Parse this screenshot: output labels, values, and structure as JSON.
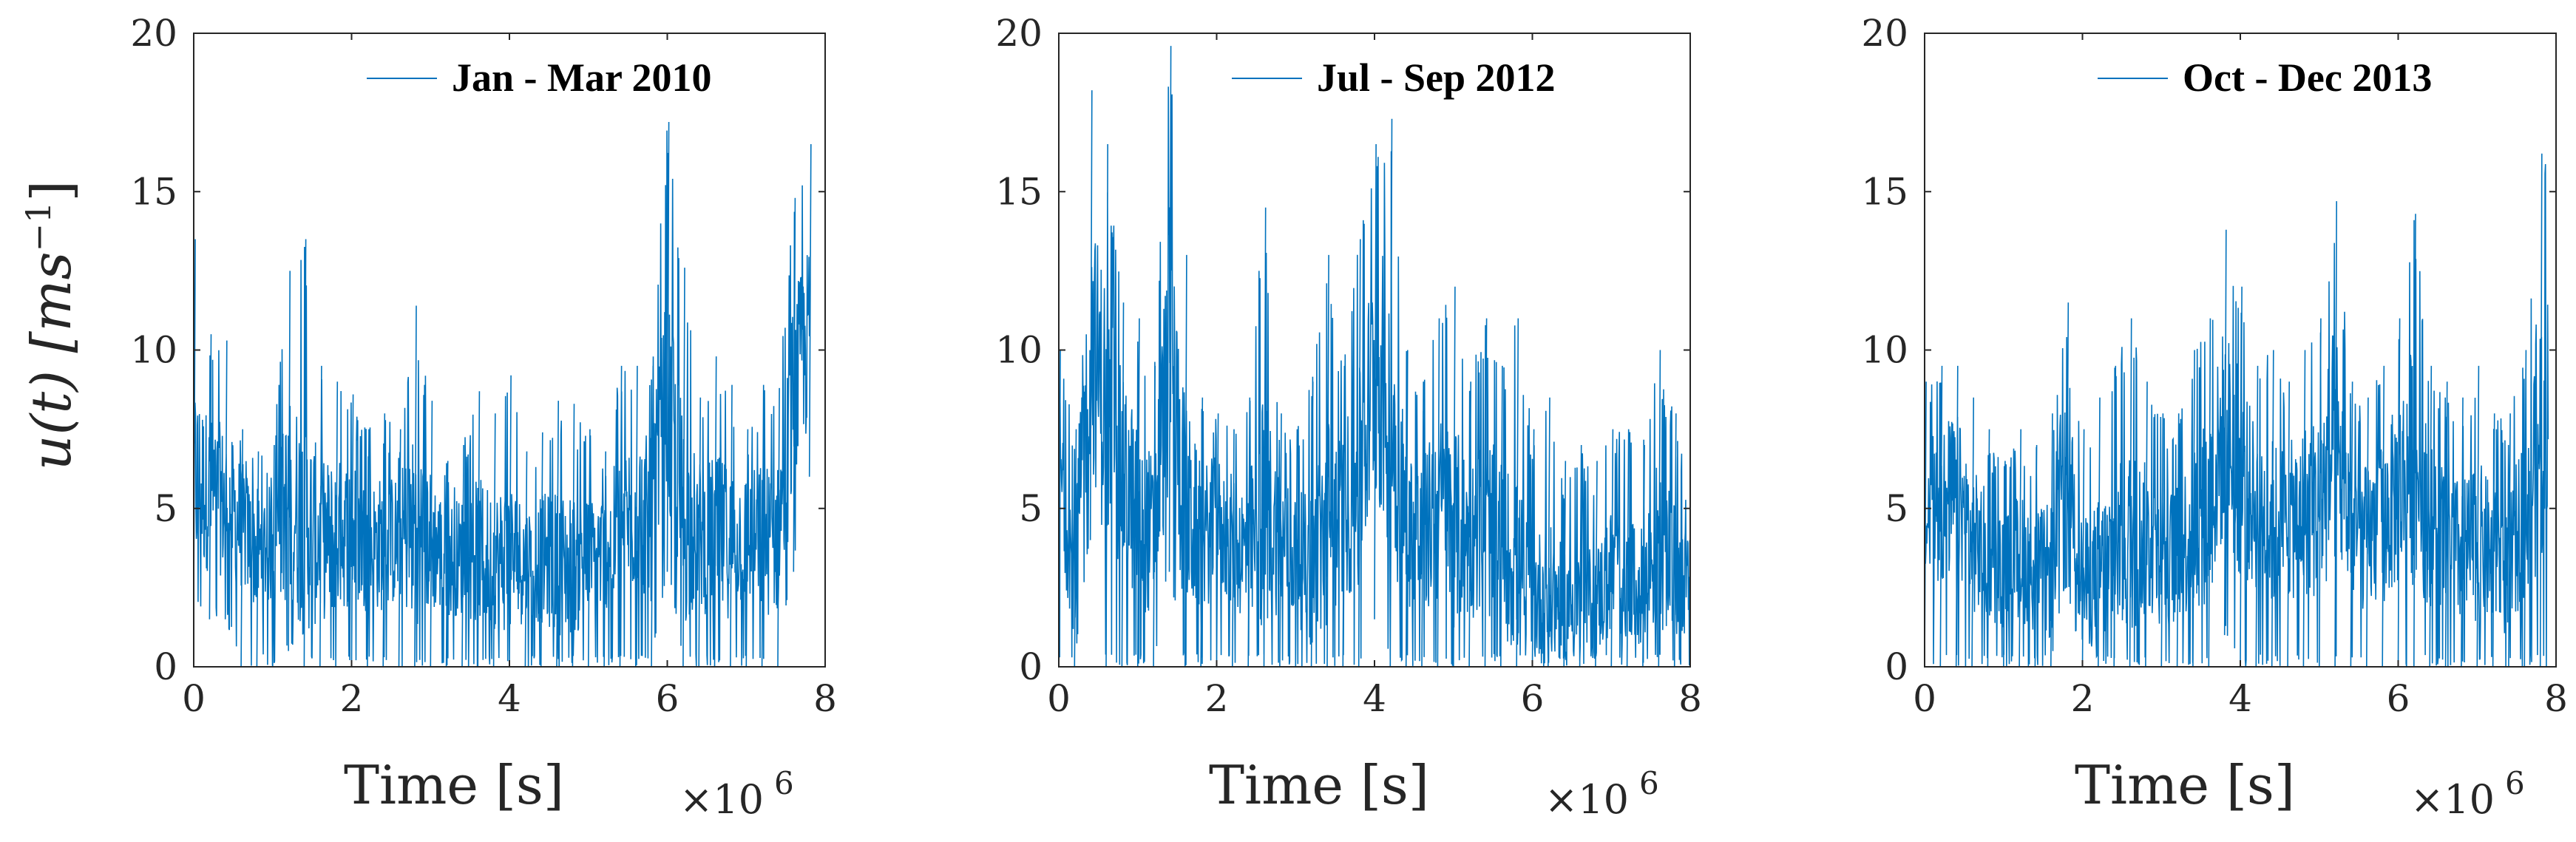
{
  "figure": {
    "ylabel_parts": [
      "u(t) [ms",
      "−1",
      "]"
    ],
    "x_multiplier": [
      "×10",
      "6"
    ]
  },
  "chart_data": [
    {
      "type": "line",
      "legend": "Jan - Mar 2010",
      "xlabel": "Time [s]",
      "ylabel": "u(t) [ms^-1]",
      "x_multiplier_exponent": 6,
      "xlim": [
        0,
        8
      ],
      "ylim": [
        0,
        20
      ],
      "xticks": [
        "0",
        "2",
        "4",
        "6",
        "8"
      ],
      "yticks": [
        "0",
        "5",
        "10",
        "15",
        "20"
      ],
      "legend_position": "top-right",
      "color": "#0072BD",
      "x_end": 7.8,
      "series": [
        {
          "name": "Jan - Mar 2010",
          "x": [
            0,
            0.2,
            0.4,
            0.6,
            0.8,
            1.0,
            1.2,
            1.4,
            1.6,
            1.8,
            2.0,
            2.2,
            2.4,
            2.6,
            2.8,
            3.0,
            3.2,
            3.4,
            3.6,
            3.8,
            4.0,
            4.2,
            4.4,
            4.6,
            4.8,
            5.0,
            5.2,
            5.4,
            5.6,
            5.8,
            6.0,
            6.2,
            6.4,
            6.6,
            6.8,
            7.0,
            7.2,
            7.4,
            7.6,
            7.8
          ],
          "mean": [
            6.0,
            5.5,
            5.2,
            4.5,
            3.6,
            3.9,
            5.2,
            4.6,
            4.0,
            4.1,
            4.3,
            3.8,
            3.9,
            4.0,
            4.4,
            4.0,
            3.4,
            3.5,
            3.6,
            3.4,
            3.5,
            3.3,
            3.4,
            3.3,
            3.2,
            3.3,
            3.7,
            4.2,
            5.0,
            4.6,
            8.5,
            4.6,
            4.2,
            4.0,
            4.0,
            4.1,
            4.0,
            4.0,
            8.5,
            10.5
          ],
          "max": [
            13.5,
            10.5,
            10.3,
            7.5,
            6.8,
            7.0,
            12.5,
            13.5,
            9.5,
            9.0,
            8.6,
            7.5,
            8.0,
            7.5,
            11.4,
            8.4,
            6.5,
            7.0,
            8.7,
            8.0,
            9.2,
            6.8,
            7.4,
            8.4,
            8.3,
            7.5,
            6.8,
            9.5,
            9.5,
            9.5,
            17.2,
            12.6,
            8.5,
            9.8,
            8.9,
            7.5,
            8.9,
            8.8,
            14.8,
            16.5
          ],
          "min": [
            2.0,
            1.5,
            1.5,
            0.0,
            0.0,
            0.0,
            0.5,
            0.0,
            0.0,
            0.0,
            0.0,
            0.0,
            0.0,
            0.0,
            0.0,
            0.0,
            0.0,
            0.0,
            0.0,
            0.0,
            0.0,
            0.0,
            0.0,
            0.0,
            0.0,
            0.0,
            0.0,
            0.0,
            0.0,
            0.0,
            3.0,
            0.0,
            0.0,
            0.0,
            0.0,
            0.0,
            0.0,
            0.0,
            3.0,
            6.0
          ]
        }
      ]
    },
    {
      "type": "line",
      "legend": "Jul - Sep 2012",
      "xlabel": "Time [s]",
      "ylabel": "",
      "x_multiplier_exponent": 6,
      "xlim": [
        0,
        8
      ],
      "ylim": [
        0,
        20
      ],
      "xticks": [
        "0",
        "2",
        "4",
        "6",
        "8"
      ],
      "yticks": [
        "0",
        "5",
        "10",
        "15",
        "20"
      ],
      "legend_position": "top-right",
      "color": "#0072BD",
      "x_end": 8.0,
      "series": [
        {
          "name": "Jul - Sep 2012",
          "x": [
            0,
            0.2,
            0.4,
            0.6,
            0.8,
            1.0,
            1.2,
            1.4,
            1.6,
            1.8,
            2.0,
            2.2,
            2.4,
            2.6,
            2.8,
            3.0,
            3.2,
            3.4,
            3.6,
            3.8,
            4.0,
            4.2,
            4.4,
            4.6,
            4.8,
            5.0,
            5.2,
            5.4,
            5.6,
            5.8,
            6.0,
            6.2,
            6.4,
            6.6,
            6.8,
            7.0,
            7.2,
            7.4,
            7.6,
            7.8,
            8.0
          ],
          "mean": [
            6.5,
            3.0,
            10.5,
            8.0,
            6.0,
            5.0,
            4.0,
            10.0,
            5.0,
            4.0,
            4.5,
            4.0,
            3.5,
            5.0,
            4.0,
            3.5,
            3.0,
            4.5,
            5.0,
            5.5,
            9.5,
            8.0,
            4.5,
            4.0,
            5.0,
            4.5,
            4.0,
            4.5,
            4.0,
            3.0,
            2.2,
            2.2,
            2.0,
            2.0,
            2.0,
            3.0,
            2.5,
            2.5,
            4.0,
            3.0,
            2.5
          ],
          "max": [
            10.0,
            7.5,
            18.2,
            16.5,
            11.5,
            11.0,
            9.5,
            19.6,
            13.0,
            8.5,
            8.0,
            7.5,
            8.5,
            14.5,
            8.0,
            7.5,
            9.0,
            13.0,
            9.5,
            13.5,
            16.5,
            17.3,
            10.0,
            9.0,
            11.0,
            12.0,
            9.0,
            11.0,
            9.5,
            11.0,
            7.5,
            8.5,
            6.5,
            7.0,
            6.5,
            7.5,
            7.5,
            7.0,
            10.0,
            8.0,
            5.5
          ],
          "min": [
            0.0,
            0.0,
            4.0,
            0.0,
            0.0,
            0.0,
            0.0,
            3.0,
            0.0,
            0.0,
            0.0,
            0.0,
            0.0,
            0.0,
            0.0,
            0.0,
            0.0,
            0.0,
            0.0,
            0.0,
            1.5,
            0.0,
            0.0,
            0.0,
            0.0,
            0.0,
            0.0,
            0.0,
            0.0,
            0.0,
            0.0,
            0.0,
            0.0,
            0.0,
            0.0,
            0.0,
            0.0,
            0.0,
            0.0,
            0.0,
            0.0
          ]
        }
      ]
    },
    {
      "type": "line",
      "legend": "Oct - Dec 2013",
      "xlabel": "Time [s]",
      "ylabel": "",
      "x_multiplier_exponent": 6,
      "xlim": [
        0,
        8
      ],
      "ylim": [
        0,
        20
      ],
      "xticks": [
        "0",
        "2",
        "4",
        "6",
        "8"
      ],
      "yticks": [
        "0",
        "5",
        "10",
        "15",
        "20"
      ],
      "legend_position": "top-right",
      "color": "#0072BD",
      "x_end": 7.9,
      "series": [
        {
          "name": "Oct - Dec 2013",
          "x": [
            0,
            0.2,
            0.4,
            0.6,
            0.8,
            1.0,
            1.2,
            1.4,
            1.6,
            1.8,
            2.0,
            2.2,
            2.4,
            2.6,
            2.8,
            3.0,
            3.2,
            3.4,
            3.6,
            3.8,
            4.0,
            4.2,
            4.4,
            4.6,
            4.8,
            5.0,
            5.2,
            5.4,
            5.6,
            5.8,
            6.0,
            6.2,
            6.4,
            6.6,
            6.8,
            7.0,
            7.2,
            7.4,
            7.6,
            7.8
          ],
          "mean": [
            4.5,
            5.0,
            5.5,
            4.0,
            3.5,
            3.0,
            3.5,
            3.0,
            3.0,
            7.5,
            2.5,
            3.0,
            3.5,
            4.0,
            4.0,
            3.5,
            3.5,
            4.5,
            5.0,
            7.5,
            6.0,
            5.0,
            4.5,
            4.5,
            5.0,
            5.0,
            7.0,
            4.5,
            4.0,
            4.5,
            5.5,
            6.5,
            4.5,
            4.0,
            3.5,
            4.0,
            3.5,
            3.0,
            5.0,
            7.5
          ],
          "max": [
            9.0,
            9.5,
            9.5,
            8.5,
            7.5,
            6.5,
            7.5,
            7.0,
            8.0,
            11.5,
            7.5,
            8.5,
            9.5,
            11.0,
            9.0,
            8.0,
            8.0,
            10.0,
            11.0,
            13.8,
            12.0,
            9.5,
            10.0,
            9.0,
            10.0,
            11.0,
            14.7,
            9.0,
            8.5,
            9.5,
            11.0,
            14.3,
            9.5,
            9.0,
            8.5,
            9.5,
            8.0,
            8.0,
            10.0,
            16.2
          ],
          "min": [
            0.0,
            0.0,
            0.0,
            0.0,
            0.0,
            0.0,
            0.0,
            0.0,
            0.0,
            2.5,
            0.0,
            0.0,
            0.0,
            0.0,
            0.0,
            0.0,
            0.0,
            0.0,
            0.0,
            1.0,
            0.0,
            0.0,
            0.0,
            0.0,
            0.0,
            0.0,
            0.0,
            0.0,
            0.0,
            0.0,
            0.0,
            0.0,
            0.0,
            0.0,
            0.0,
            0.0,
            0.0,
            0.0,
            0.0,
            0.0
          ]
        }
      ]
    }
  ]
}
